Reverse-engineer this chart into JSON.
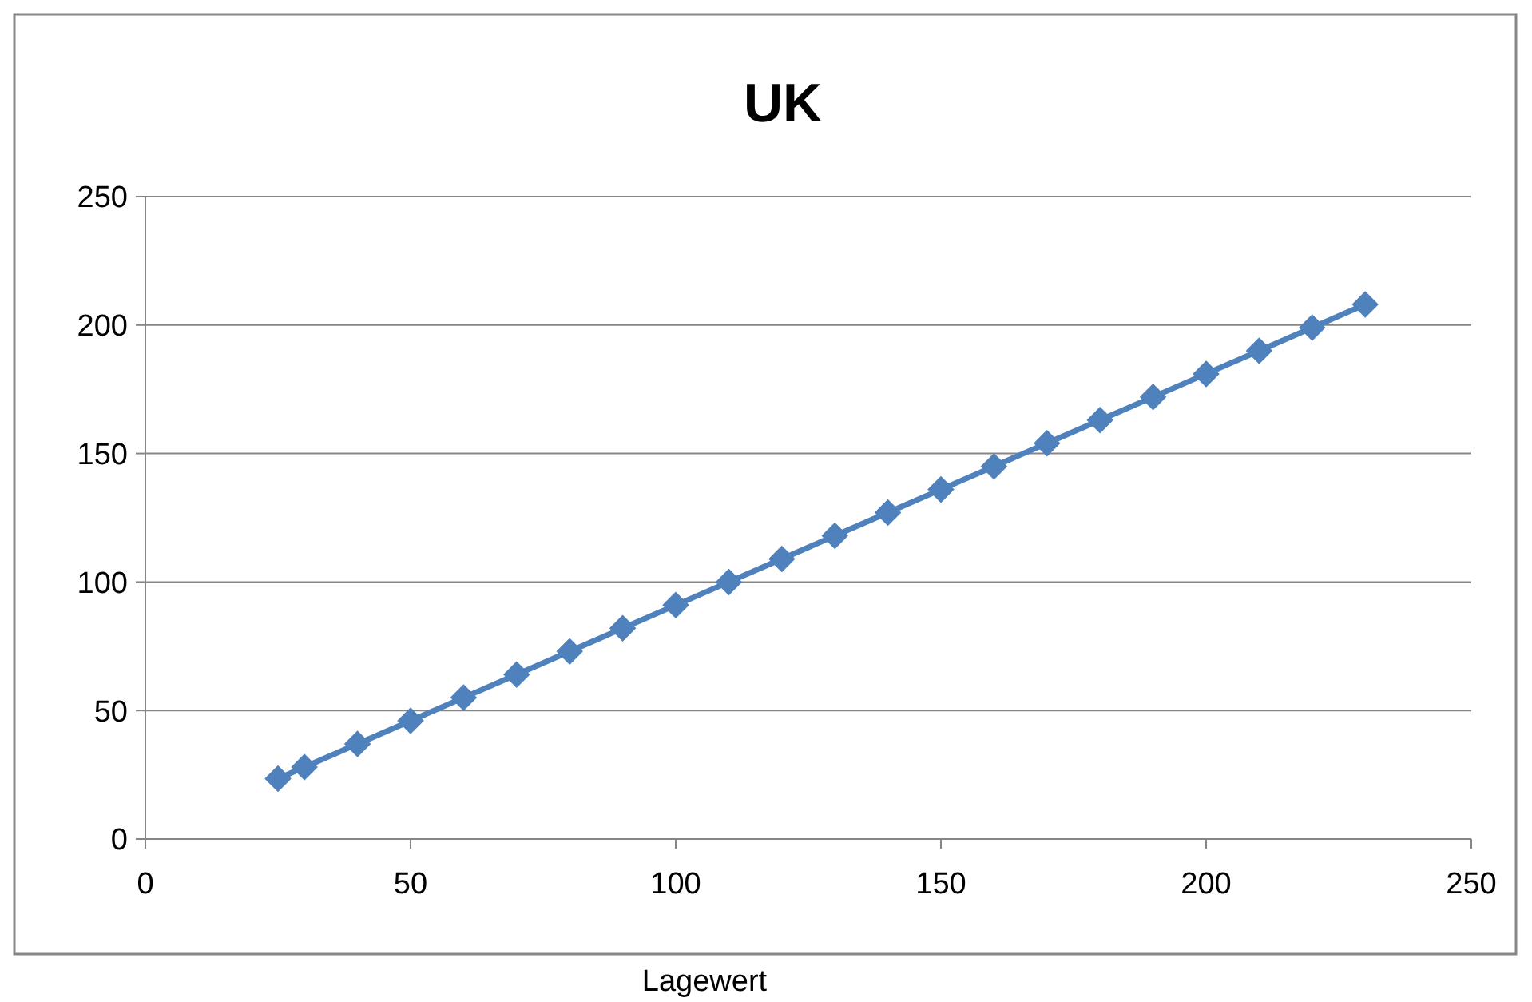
{
  "chart_data": {
    "type": "line",
    "title": "UK",
    "xlabel": "Lagewert",
    "x": [
      25,
      30,
      40,
      50,
      60,
      70,
      80,
      90,
      100,
      110,
      120,
      130,
      140,
      150,
      160,
      170,
      180,
      190,
      200,
      210,
      220,
      230
    ],
    "series": [
      {
        "color": "#4f81bd",
        "values": [
          23.5,
          28,
          37,
          46,
          55,
          64,
          73,
          82,
          91,
          100,
          109,
          118,
          127,
          136,
          145,
          154,
          163,
          172,
          181,
          190,
          199,
          208
        ]
      }
    ],
    "xlim": [
      0,
      250
    ],
    "xticks": [
      0,
      50,
      100,
      150,
      200,
      250
    ],
    "ylim": [
      0,
      250
    ],
    "yticks": [
      0,
      50,
      100,
      150,
      200,
      250
    ],
    "grid": "y",
    "marker": "diamond",
    "line_style": "solid"
  }
}
